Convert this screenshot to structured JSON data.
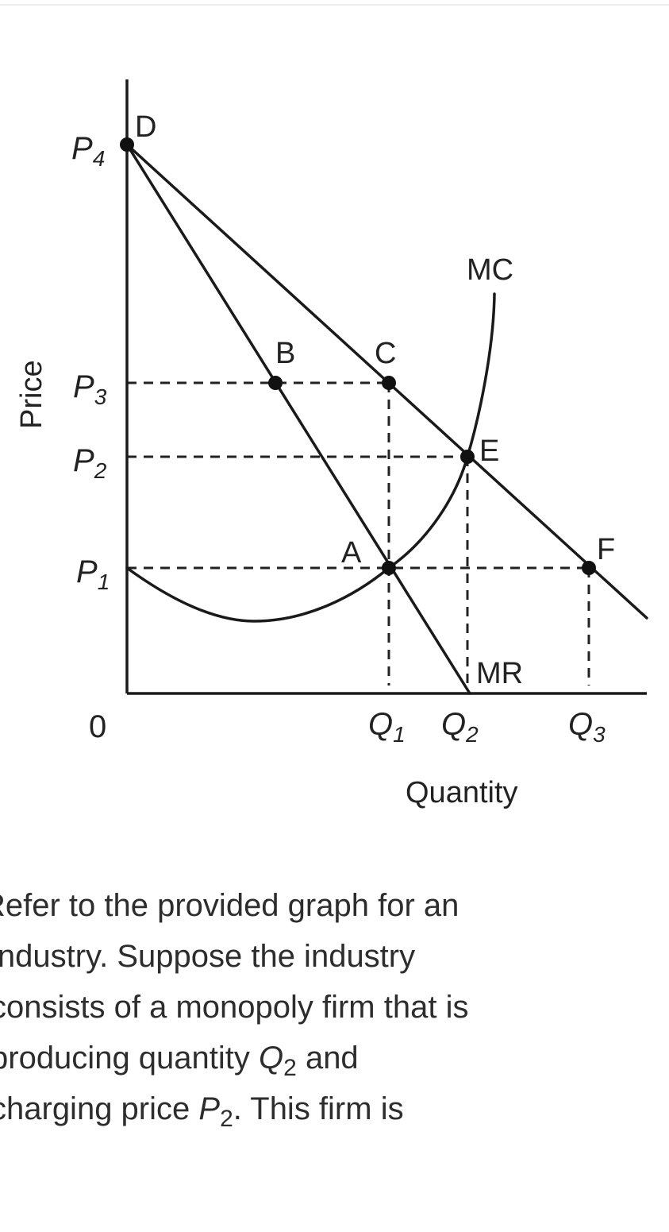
{
  "chart_data": {
    "type": "line",
    "ylabel": "Price",
    "xlabel": "Quantity",
    "origin_label": "0",
    "y_ticks": [
      {
        "base": "P",
        "sub": "4",
        "value": 4
      },
      {
        "base": "P",
        "sub": "3",
        "value": 3
      },
      {
        "base": "P",
        "sub": "2",
        "value": 2
      },
      {
        "base": "P",
        "sub": "1",
        "value": 1
      }
    ],
    "x_ticks": [
      {
        "base": "Q",
        "sub": "1",
        "value": 1
      },
      {
        "base": "Q",
        "sub": "2",
        "value": 2
      },
      {
        "base": "Q",
        "sub": "3",
        "value": 3
      }
    ],
    "series": [
      {
        "name": "MC",
        "shape": "u-shaped curve rising through A and E"
      },
      {
        "name": "MR",
        "shape": "straight line from D through B and A"
      },
      {
        "name": "",
        "shape": "demand line from D through C, E and F"
      }
    ],
    "points": [
      {
        "label": "D",
        "x": "0",
        "y": "P4"
      },
      {
        "label": "B",
        "x": "",
        "y": "P3"
      },
      {
        "label": "C",
        "x": "Q1",
        "y": "P3"
      },
      {
        "label": "E",
        "x": "Q2",
        "y": "P2"
      },
      {
        "label": "A",
        "x": "Q1",
        "y": "P1"
      },
      {
        "label": "F",
        "x": "Q3",
        "y": "P1"
      }
    ],
    "grid": false,
    "guides": "dashed"
  },
  "question": {
    "lines": [
      [
        {
          "t": "Refer to the provided graph for an"
        }
      ],
      [
        {
          "t": "industry. Suppose the industry"
        }
      ],
      [
        {
          "t": "consists of a monopoly firm that is"
        }
      ],
      [
        {
          "t": "producing quantity "
        },
        {
          "t": "Q",
          "italic": true
        },
        {
          "t": "2",
          "sub": true
        },
        {
          "t": " and"
        }
      ],
      [
        {
          "t": "charging price "
        },
        {
          "t": "P",
          "italic": true
        },
        {
          "t": "2",
          "sub": true
        },
        {
          "t": ". This firm is"
        }
      ]
    ],
    "indent_first": -22,
    "indent_rest": -12
  }
}
